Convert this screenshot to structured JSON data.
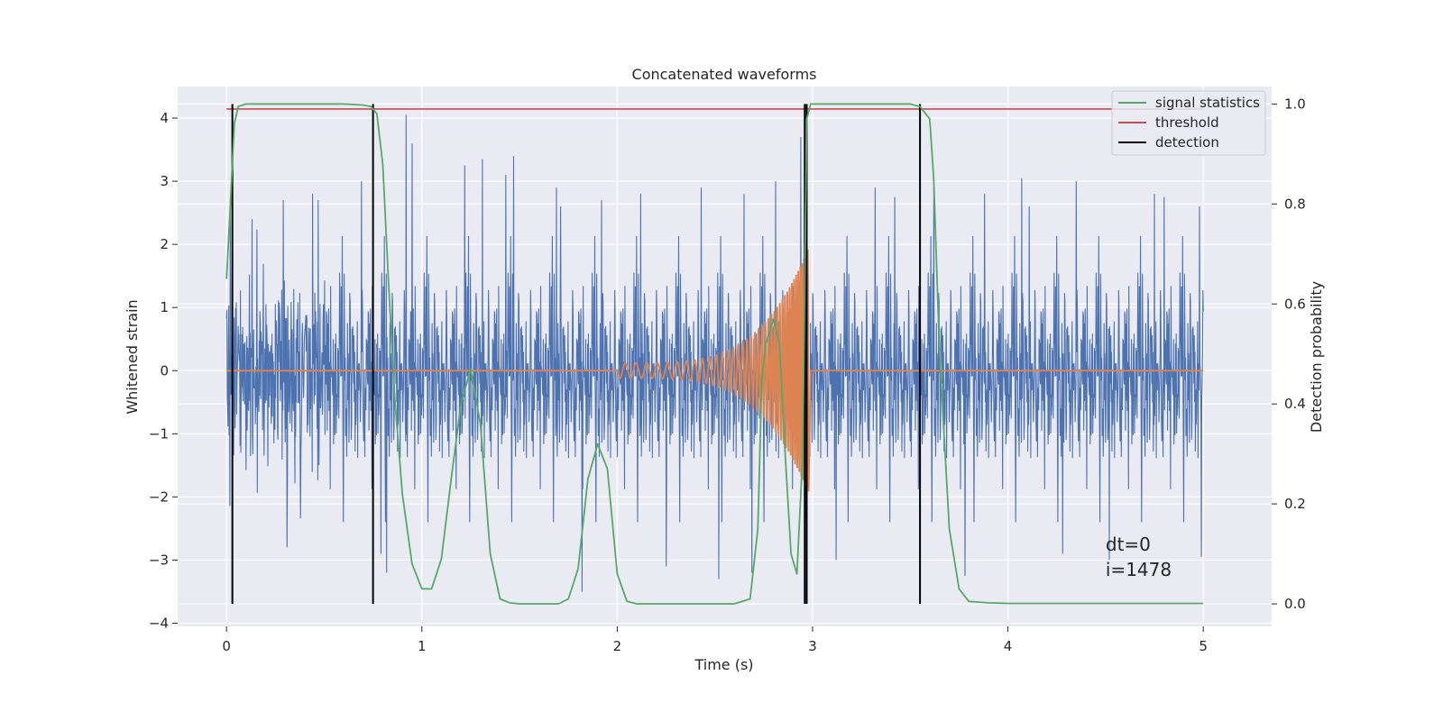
{
  "chart_data": {
    "type": "line",
    "title": "Concatenated waveforms",
    "xlabel": "Time (s)",
    "ylabel": "Whitened strain",
    "y2label": "Detection probability",
    "xlim": [
      -0.25,
      5.35
    ],
    "ylim": [
      -4.05,
      4.5
    ],
    "y2lim": [
      -0.045,
      1.035
    ],
    "x_ticks": [
      0,
      1,
      2,
      3,
      4,
      5
    ],
    "y_ticks": [
      -4,
      -3,
      -2,
      -1,
      0,
      1,
      2,
      3,
      4
    ],
    "y2_ticks": [
      0.0,
      0.2,
      0.4,
      0.6,
      0.8,
      1.0
    ],
    "x_tick_labels": [
      "0",
      "1",
      "2",
      "3",
      "4",
      "5"
    ],
    "y_tick_labels": [
      "−4",
      "−3",
      "−2",
      "−1",
      "0",
      "1",
      "2",
      "3",
      "4"
    ],
    "y2_tick_labels": [
      "0.0",
      "0.2",
      "0.4",
      "0.6",
      "0.8",
      "1.0"
    ],
    "grid": true,
    "legend_position": "top-right",
    "colors": {
      "strain": "#4c72b0",
      "injection": "#dd8452",
      "signal_statistics": "#55a868",
      "threshold": "#c44e52",
      "detection": "#000000",
      "plot_background": "#eaeaf2",
      "grid": "#ffffff"
    },
    "series": [
      {
        "name": "",
        "axis": "left",
        "color": "#4c72b0",
        "description_from_image": "whitened strain noise, 0 to 5 s",
        "x_range": [
          0,
          5
        ],
        "approx_amplitude": 1.0,
        "spikes": [
          [
            0.02,
            2.5
          ],
          [
            0.13,
            2.4
          ],
          [
            0.29,
            2.7
          ],
          [
            0.31,
            -2.8
          ],
          [
            0.44,
            2.8
          ],
          [
            0.47,
            2.7
          ],
          [
            0.69,
            3.0
          ],
          [
            0.79,
            -2.9
          ],
          [
            0.82,
            -3.2
          ],
          [
            0.92,
            4.05
          ],
          [
            0.95,
            3.6
          ],
          [
            1.22,
            3.25
          ],
          [
            1.31,
            3.35
          ],
          [
            1.43,
            3.1
          ],
          [
            1.47,
            3.4
          ],
          [
            1.69,
            2.9
          ],
          [
            1.71,
            2.6
          ],
          [
            1.82,
            -3.5
          ],
          [
            1.92,
            2.7
          ],
          [
            2.12,
            2.8
          ],
          [
            2.25,
            -3.1
          ],
          [
            2.43,
            2.9
          ],
          [
            2.52,
            -3.3
          ],
          [
            2.65,
            2.8
          ],
          [
            2.69,
            -3.2
          ],
          [
            2.81,
            3.0
          ],
          [
            2.94,
            3.7
          ],
          [
            2.97,
            -3.6
          ],
          [
            3.12,
            -3.0
          ],
          [
            3.32,
            2.9
          ],
          [
            3.42,
            2.75
          ],
          [
            3.55,
            -3.1
          ],
          [
            3.62,
            2.9
          ],
          [
            3.78,
            -3.25
          ],
          [
            3.88,
            2.8
          ],
          [
            4.07,
            3.05
          ],
          [
            4.11,
            2.6
          ],
          [
            4.28,
            -2.9
          ],
          [
            4.35,
            3.0
          ],
          [
            4.52,
            -3.0
          ],
          [
            4.75,
            2.8
          ],
          [
            4.8,
            2.75
          ],
          [
            4.98,
            2.6
          ],
          [
            4.99,
            -2.95
          ]
        ]
      },
      {
        "name": "",
        "axis": "left",
        "color": "#dd8452",
        "description_from_image": "injected chirp waveform",
        "x_range": [
          0,
          5
        ],
        "chirp_start": 2.0,
        "chirp_end": 2.98,
        "start_amplitude": 0.12,
        "peak_amplitude": 1.95,
        "start_frequency": 18,
        "end_frequency": 110
      },
      {
        "name": "signal statistics",
        "axis": "right",
        "color": "#55a868",
        "x": [
          0,
          0.02,
          0.04,
          0.06,
          0.1,
          0.2,
          0.4,
          0.6,
          0.7,
          0.74,
          0.77,
          0.8,
          0.83,
          0.86,
          0.9,
          0.95,
          1.0,
          1.05,
          1.1,
          1.15,
          1.2,
          1.25,
          1.3,
          1.35,
          1.4,
          1.45,
          1.5,
          1.6,
          1.7,
          1.75,
          1.8,
          1.85,
          1.9,
          1.95,
          2.0,
          2.05,
          2.1,
          2.2,
          2.4,
          2.6,
          2.68,
          2.72,
          2.74,
          2.76,
          2.8,
          2.83,
          2.86,
          2.89,
          2.92,
          2.95,
          2.97,
          2.99,
          3.02,
          3.1,
          3.3,
          3.5,
          3.55,
          3.6,
          3.62,
          3.65,
          3.7,
          3.75,
          3.8,
          3.9,
          4.0,
          4.5,
          5.0
        ],
        "values": [
          0.65,
          0.8,
          0.96,
          0.995,
          1.0,
          1.0,
          1.0,
          1.0,
          0.998,
          0.995,
          0.98,
          0.88,
          0.64,
          0.42,
          0.22,
          0.08,
          0.03,
          0.03,
          0.09,
          0.25,
          0.4,
          0.47,
          0.36,
          0.1,
          0.01,
          0.002,
          0.0,
          0.0,
          0.0,
          0.01,
          0.07,
          0.25,
          0.32,
          0.27,
          0.06,
          0.005,
          0.0,
          0.0,
          0.0,
          0.0,
          0.01,
          0.15,
          0.45,
          0.52,
          0.57,
          0.52,
          0.3,
          0.1,
          0.06,
          0.3,
          0.97,
          1.0,
          1.0,
          1.0,
          1.0,
          1.0,
          0.995,
          0.97,
          0.85,
          0.5,
          0.15,
          0.03,
          0.005,
          0.002,
          0.001,
          0.001,
          0.001
        ]
      },
      {
        "name": "threshold",
        "axis": "right",
        "color": "#c44e52",
        "x": [
          0,
          5
        ],
        "values": [
          0.99,
          0.99
        ]
      },
      {
        "name": "detection",
        "axis": "right",
        "color": "#000000",
        "vlines_x": [
          0.03,
          0.75,
          2.96,
          2.97,
          3.55
        ],
        "ymin": 0,
        "ymax": 1.0
      }
    ],
    "legend": [
      {
        "label": "signal statistics",
        "color": "#55a868"
      },
      {
        "label": "threshold",
        "color": "#c44e52"
      },
      {
        "label": "detection",
        "color": "#000000"
      }
    ],
    "annotations": [
      {
        "text": "dt=0",
        "x": 4.5,
        "y": -2.75
      },
      {
        "text": "i=1478",
        "x": 4.5,
        "y": -3.15
      }
    ]
  }
}
